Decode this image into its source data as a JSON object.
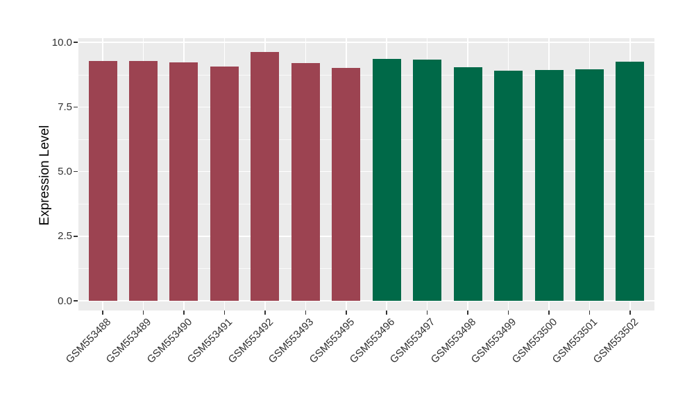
{
  "figure": {
    "background_color": "#FFFFFF",
    "panel_background_color": "#EBEBEB",
    "gridline_color": "#FFFFFF",
    "tick_mark_color": "#333333",
    "tick_label_color": "#303030"
  },
  "chart_data": {
    "type": "bar",
    "title": "",
    "xlabel": "",
    "ylabel": "Expression Level",
    "categories": [
      "GSM553488",
      "GSM553489",
      "GSM553490",
      "GSM553491",
      "GSM553492",
      "GSM553493",
      "GSM553495",
      "GSM553496",
      "GSM553497",
      "GSM553498",
      "GSM553499",
      "GSM553500",
      "GSM553501",
      "GSM553502"
    ],
    "values": [
      9.28,
      9.28,
      9.22,
      9.06,
      9.62,
      9.2,
      9.01,
      9.36,
      9.33,
      9.04,
      8.89,
      8.94,
      8.96,
      9.25
    ],
    "bar_groups": [
      "groupA",
      "groupA",
      "groupA",
      "groupA",
      "groupA",
      "groupA",
      "groupA",
      "groupB",
      "groupB",
      "groupB",
      "groupB",
      "groupB",
      "groupB",
      "groupB"
    ],
    "group_colors": {
      "groupA": "#9C4351",
      "groupB": "#006948"
    },
    "ylim": [
      0,
      10
    ],
    "y_major_ticks": [
      0,
      2.5,
      5,
      7.5,
      10
    ],
    "y_major_tick_labels": [
      "0.0",
      "2.5",
      "5.0",
      "7.5",
      "10.0"
    ],
    "y_minor_ticks": [
      1.25,
      3.75,
      6.25,
      8.75
    ],
    "grid": "major-and-minor-horizontal, major-vertical-at-categories",
    "legend": "none"
  }
}
